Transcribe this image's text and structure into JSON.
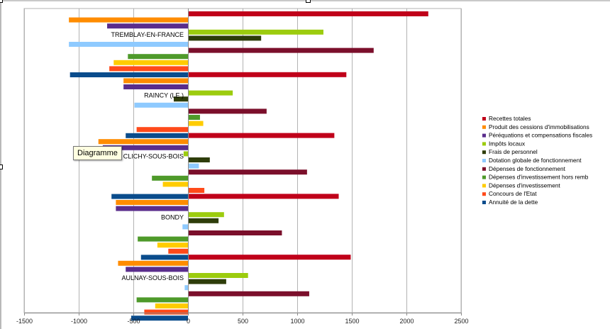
{
  "tooltip": {
    "text": "Diagramme"
  },
  "colors": {
    "Recettes totales": "#c0001a",
    "Produit des cessions d'immobilisations": "#ff8c00",
    "Péréquations et compensations fiscales": "#5a2d8c",
    "Impôts locaux": "#9ccc0e",
    "Frais de personnel": "#2e3d0a",
    "Dotation globale de fonctionnement": "#8ecaff",
    "Dépenses de fonctionnement": "#7b0f2b",
    "Dépenses d'investissement hors remb": "#4e9a2a",
    "Dépenses d'investissement": "#ffcc00",
    "Concours de l'Etat": "#ff4a1a",
    "Annuité de la dette": "#0a4c8c"
  },
  "chart_data": {
    "type": "bar",
    "orientation": "horizontal",
    "categories": [
      "TREMBLAY-EN-FRANCE",
      "RAINCY (LE )",
      "CLICHY-SOUS-BOIS",
      "BONDY",
      "AULNAY-SOUS-BOIS"
    ],
    "series": [
      {
        "name": "Recettes totales",
        "values": [
          2200,
          1450,
          1340,
          1380,
          1490
        ]
      },
      {
        "name": "Produit des cessions d'immobilisations",
        "values": [
          -1090,
          -590,
          -820,
          -660,
          -640
        ]
      },
      {
        "name": "Péréquations et compensations fiscales",
        "values": [
          -740,
          -590,
          -780,
          -660,
          -570
        ]
      },
      {
        "name": "Impôts locaux",
        "values": [
          1240,
          410,
          -40,
          330,
          550
        ]
      },
      {
        "name": "Frais de personnel",
        "values": [
          670,
          -130,
          200,
          280,
          350
        ]
      },
      {
        "name": "Dotation globale de fonctionnement",
        "values": [
          -1090,
          -490,
          100,
          -50,
          -30
        ]
      },
      {
        "name": "Dépenses de fonctionnement",
        "values": [
          1700,
          720,
          1090,
          860,
          1110
        ]
      },
      {
        "name": "Dépenses d'investissement hors remb",
        "values": [
          -550,
          110,
          -330,
          -460,
          -470
        ]
      },
      {
        "name": "Dépenses d'investissement",
        "values": [
          -680,
          140,
          -230,
          -280,
          -300
        ]
      },
      {
        "name": "Concours de l'Etat",
        "values": [
          -720,
          -470,
          150,
          -180,
          -400
        ]
      },
      {
        "name": "Annuité de la dette",
        "values": [
          -1080,
          -570,
          -700,
          -430,
          -520
        ]
      }
    ],
    "xlim": [
      -1500,
      2500
    ],
    "xticks": [
      -1500,
      -1000,
      -500,
      0,
      500,
      1000,
      1500,
      2000,
      2500
    ],
    "grid": true,
    "legend_position": "right",
    "title": "",
    "xlabel": "",
    "ylabel": ""
  }
}
